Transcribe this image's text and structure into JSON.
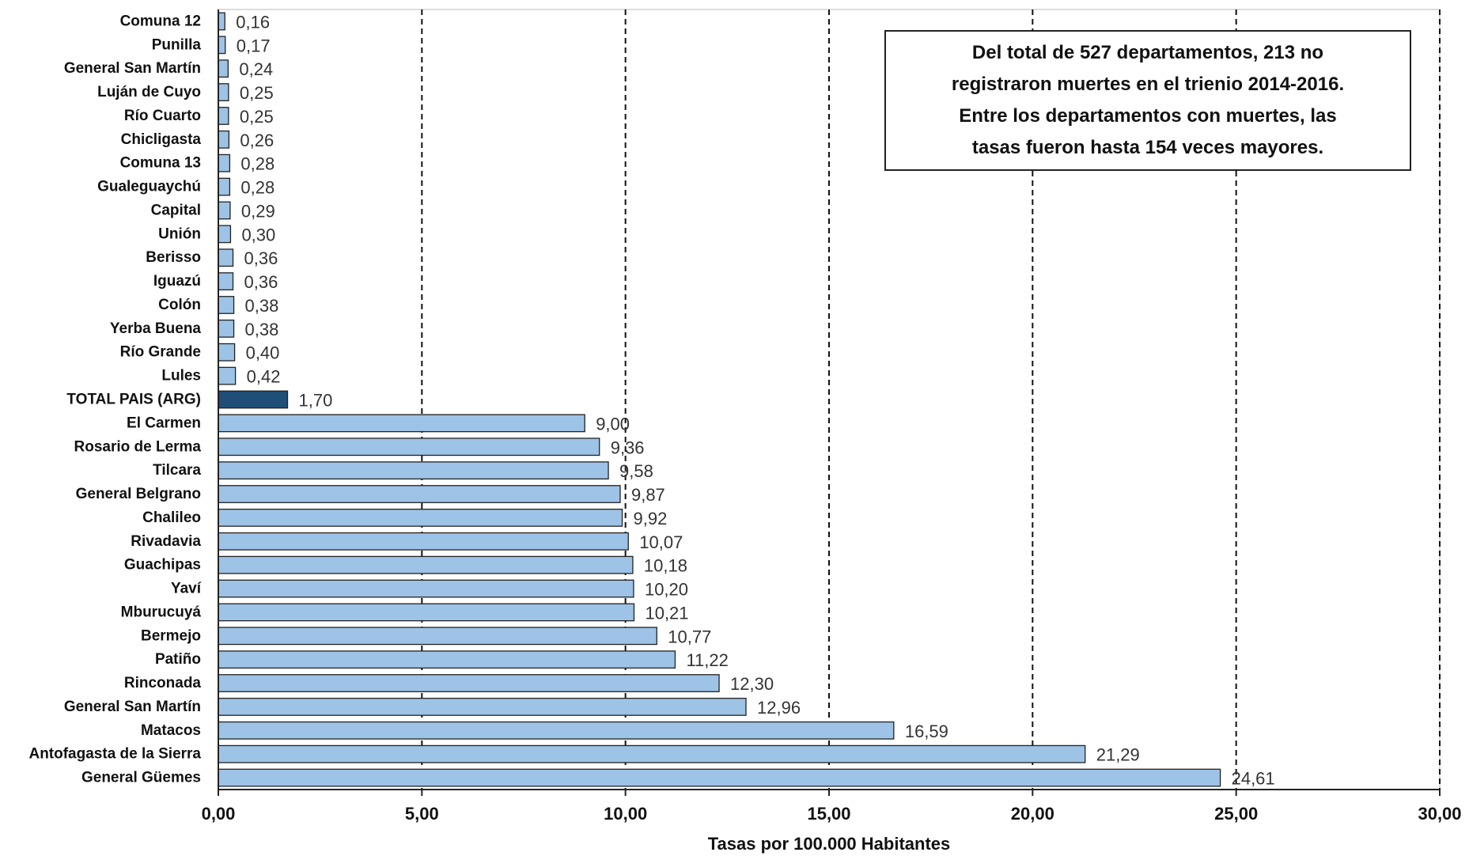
{
  "chart_data": {
    "type": "bar",
    "orientation": "horizontal",
    "categories": [
      "Comuna 12",
      "Punilla",
      "General San Martín",
      "Luján de Cuyo",
      "Río Cuarto",
      "Chicligasta",
      "Comuna 13",
      "Gualeguaychú",
      "Capital",
      "Unión",
      "Berisso",
      "Iguazú",
      "Colón",
      "Yerba Buena",
      "Río Grande",
      "Lules",
      "TOTAL PAIS (ARG)",
      "El Carmen",
      "Rosario de Lerma",
      "Tilcara",
      "General Belgrano",
      "Chalileo",
      "Rivadavia",
      "Guachipas",
      "Yaví",
      "Mburucuyá",
      "Bermejo",
      "Patiño",
      "Rinconada",
      "General San Martín",
      "Matacos",
      "Antofagasta de la Sierra",
      "General Güemes"
    ],
    "values": [
      0.16,
      0.17,
      0.24,
      0.25,
      0.25,
      0.26,
      0.28,
      0.28,
      0.29,
      0.3,
      0.36,
      0.36,
      0.38,
      0.38,
      0.4,
      0.42,
      1.7,
      9.0,
      9.36,
      9.58,
      9.87,
      9.92,
      10.07,
      10.18,
      10.2,
      10.21,
      10.77,
      11.22,
      12.3,
      12.96,
      16.59,
      21.29,
      24.61
    ],
    "value_labels": [
      "0,16",
      "0,17",
      "0,24",
      "0,25",
      "0,25",
      "0,26",
      "0,28",
      "0,28",
      "0,29",
      "0,30",
      "0,36",
      "0,36",
      "0,38",
      "0,38",
      "0,40",
      "0,42",
      "1,70",
      "9,00",
      "9,36",
      "9,58",
      "9,87",
      "9,92",
      "10,07",
      "10,18",
      "10,20",
      "10,21",
      "10,77",
      "11,22",
      "12,30",
      "12,96",
      "16,59",
      "21,29",
      "24,61"
    ],
    "highlight_category": "TOTAL PAIS (ARG)",
    "xlim": [
      0,
      30
    ],
    "xticks": [
      0,
      5,
      10,
      15,
      20,
      25,
      30
    ],
    "xtick_labels": [
      "0,00",
      "5,00",
      "10,00",
      "15,00",
      "20,00",
      "25,00",
      "30,00"
    ],
    "xlabel": "Tasas por 100.000 Habitantes",
    "grid": "vertical dashed",
    "colors": {
      "bar": "#9dc3e6",
      "highlight": "#1f4e79",
      "bar_edge": "#222222"
    }
  },
  "note": {
    "lines": [
      "Del total de 527 departamentos, 213 no",
      "registraron muertes en el trienio 2014-2016.",
      "Entre los departamentos con muertes, las",
      "tasas fueron hasta 154 veces mayores."
    ]
  }
}
